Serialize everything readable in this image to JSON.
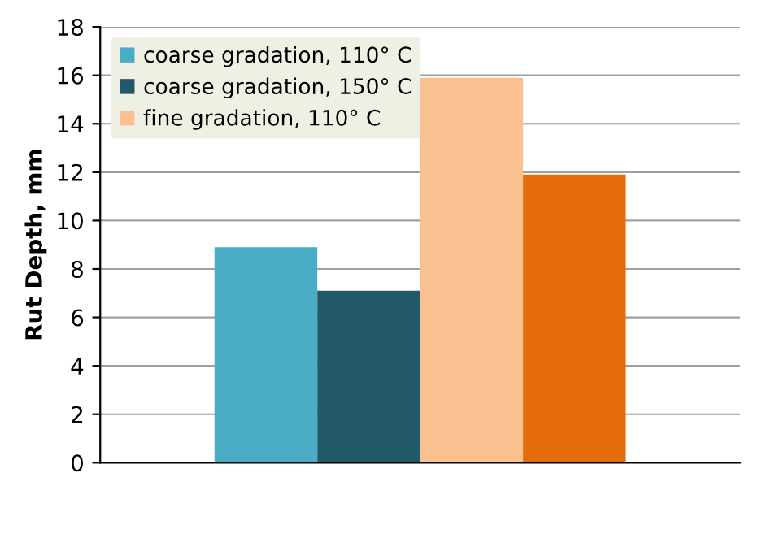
{
  "chart_data": {
    "type": "bar",
    "ylabel": "Rut Depth, mm",
    "categories": [
      null
    ],
    "series": [
      {
        "name": "coarse gradation, 110° C",
        "color": "#4bacc6",
        "values": [
          8.9
        ]
      },
      {
        "name": "coarse gradation, 150° C",
        "color": "#215968",
        "values": [
          7.1
        ]
      },
      {
        "name": "fine gradation, 110° C",
        "color": "#fac090",
        "values": [
          15.9
        ]
      },
      {
        "color": "#e46c0a",
        "values": [
          11.9
        ]
      }
    ],
    "ylim": [
      0,
      18
    ],
    "yticks": [
      0,
      2,
      4,
      6,
      8,
      10,
      12,
      14,
      16,
      18
    ],
    "grid": "y",
    "legend": "top left"
  }
}
